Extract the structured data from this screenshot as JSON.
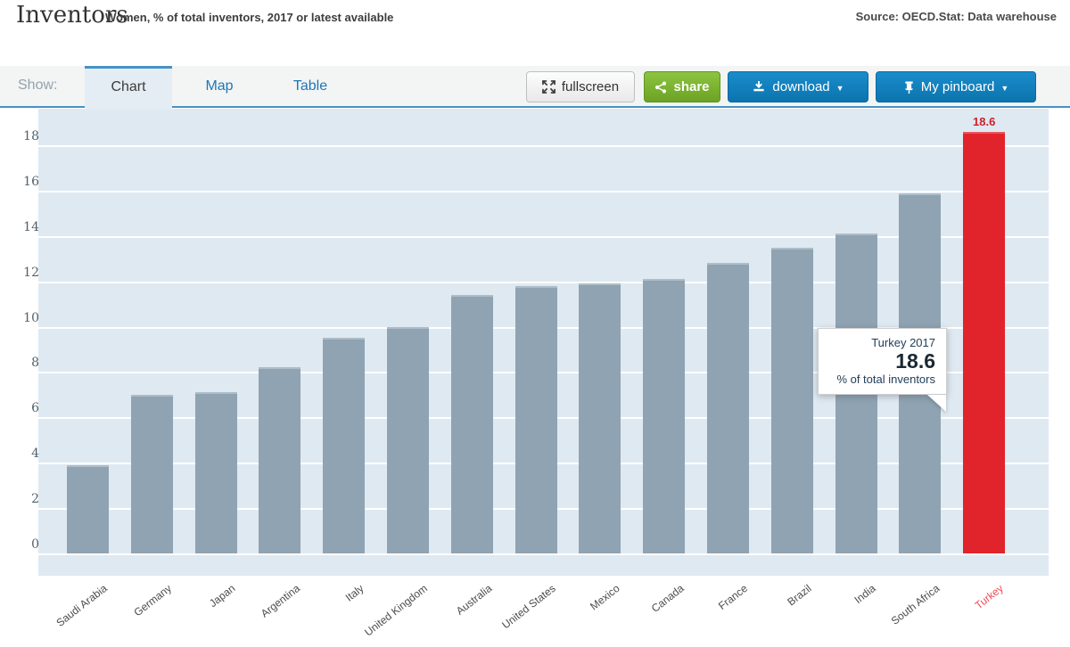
{
  "header": {
    "title": "Inventors",
    "subtitle": "Women, % of total inventors, 2017 or latest available",
    "source": "Source: OECD.Stat: Data warehouse"
  },
  "toolbar": {
    "show_label": "Show:",
    "tabs": [
      {
        "label": "Chart",
        "active": true
      },
      {
        "label": "Map",
        "active": false
      },
      {
        "label": "Table",
        "active": false
      }
    ],
    "buttons": {
      "fullscreen": "fullscreen",
      "share": "share",
      "download": "download",
      "pinboard": "My pinboard"
    }
  },
  "chart_data": {
    "type": "bar",
    "title": "Inventors — Women, % of total inventors, 2017 or latest available",
    "ylabel": "% of total inventors",
    "xlabel": "",
    "ylim": [
      0,
      18
    ],
    "yticks": [
      0,
      2,
      4,
      6,
      8,
      10,
      12,
      14,
      16,
      18
    ],
    "grid": true,
    "categories": [
      "Saudi Arabia",
      "Germany",
      "Japan",
      "Argentina",
      "Italy",
      "United Kingdom",
      "Australia",
      "United States",
      "Mexico",
      "Canada",
      "France",
      "Brazil",
      "India",
      "South Africa",
      "Turkey"
    ],
    "values": [
      3.9,
      7.0,
      7.1,
      8.2,
      9.5,
      10.0,
      11.4,
      11.8,
      11.9,
      12.1,
      12.8,
      13.5,
      14.1,
      15.9,
      18.6
    ],
    "highlight_category": "Turkey",
    "highlight_value_label": "18.6",
    "tooltip": {
      "line1": "Turkey 2017",
      "value": "18.6",
      "line2": "% of total inventors"
    }
  },
  "colors": {
    "bar": "#8fa3b2",
    "bar_edge": "#aebdc8",
    "highlight": "#e1242b",
    "highlight_edge": "#e9575c",
    "plot_bg": "#dfe9f1",
    "grid": "#ffffff",
    "value_label": "#cf2028",
    "x_label": "#4c4c4c",
    "x_label_highlight": "#ee4d53",
    "accent_blue": "#4791c3",
    "link_blue": "#1b77b8",
    "button_green": "#7ab32e",
    "button_blue": "#0f82c2"
  }
}
